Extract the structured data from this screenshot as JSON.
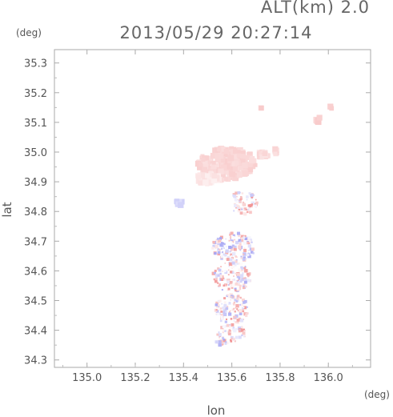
{
  "chart_data": {
    "type": "scatter",
    "title": "2013/05/29 20:27:14",
    "subtitle": "ALT(km) 2.0",
    "xlabel": "lon",
    "ylabel": "lat",
    "x_unit": "(deg)",
    "y_unit": "(deg)",
    "xlim": [
      134.865,
      136.175
    ],
    "ylim": [
      34.275,
      35.345
    ],
    "x_ticks": [
      "135.0",
      "135.2",
      "135.4",
      "135.6",
      "135.8",
      "136.0"
    ],
    "y_ticks": [
      "34.3",
      "34.4",
      "34.5",
      "34.6",
      "34.7",
      "34.8",
      "34.9",
      "35.0",
      "35.1",
      "35.2",
      "35.3"
    ],
    "grid": false,
    "colors": {
      "positive": "#f08c8c",
      "negative": "#8c8cf0",
      "neutral": "#ffffff"
    },
    "clusters": [
      {
        "lon": 135.58,
        "lat": 34.96,
        "rx": 0.12,
        "ry": 0.055,
        "value": 0.35,
        "count": 220,
        "dense": true
      },
      {
        "lon": 135.5,
        "lat": 34.91,
        "rx": 0.05,
        "ry": 0.02,
        "value": 0.2,
        "count": 40,
        "dense": true
      },
      {
        "lon": 135.73,
        "lat": 34.99,
        "rx": 0.02,
        "ry": 0.012,
        "value": 0.3,
        "count": 25,
        "dense": true
      },
      {
        "lon": 135.78,
        "lat": 35.0,
        "rx": 0.01,
        "ry": 0.01,
        "value": 0.3,
        "count": 8,
        "dense": true
      },
      {
        "lon": 135.96,
        "lat": 35.11,
        "rx": 0.012,
        "ry": 0.01,
        "value": 0.4,
        "count": 10,
        "dense": true
      },
      {
        "lon": 136.01,
        "lat": 35.15,
        "rx": 0.005,
        "ry": 0.004,
        "value": 0.4,
        "count": 3,
        "dense": true
      },
      {
        "lon": 135.72,
        "lat": 35.15,
        "rx": 0.004,
        "ry": 0.004,
        "value": 0.4,
        "count": 2,
        "dense": true
      },
      {
        "lon": 135.38,
        "lat": 34.83,
        "rx": 0.015,
        "ry": 0.01,
        "value": -0.35,
        "count": 14,
        "dense": true
      },
      {
        "lon": 135.65,
        "lat": 34.83,
        "rx": 0.06,
        "ry": 0.04,
        "value": 0.15,
        "count": 70,
        "dense": false
      },
      {
        "lon": 135.61,
        "lat": 34.68,
        "rx": 0.09,
        "ry": 0.05,
        "value": 0.0,
        "count": 150,
        "dense": false
      },
      {
        "lon": 135.6,
        "lat": 34.58,
        "rx": 0.08,
        "ry": 0.05,
        "value": 0.05,
        "count": 130,
        "dense": false
      },
      {
        "lon": 135.6,
        "lat": 34.47,
        "rx": 0.07,
        "ry": 0.05,
        "value": 0.1,
        "count": 110,
        "dense": false
      },
      {
        "lon": 135.6,
        "lat": 34.39,
        "rx": 0.06,
        "ry": 0.03,
        "value": 0.2,
        "count": 60,
        "dense": false
      },
      {
        "lon": 135.56,
        "lat": 34.36,
        "rx": 0.03,
        "ry": 0.01,
        "value": 0.0,
        "count": 20,
        "dense": false
      }
    ]
  }
}
